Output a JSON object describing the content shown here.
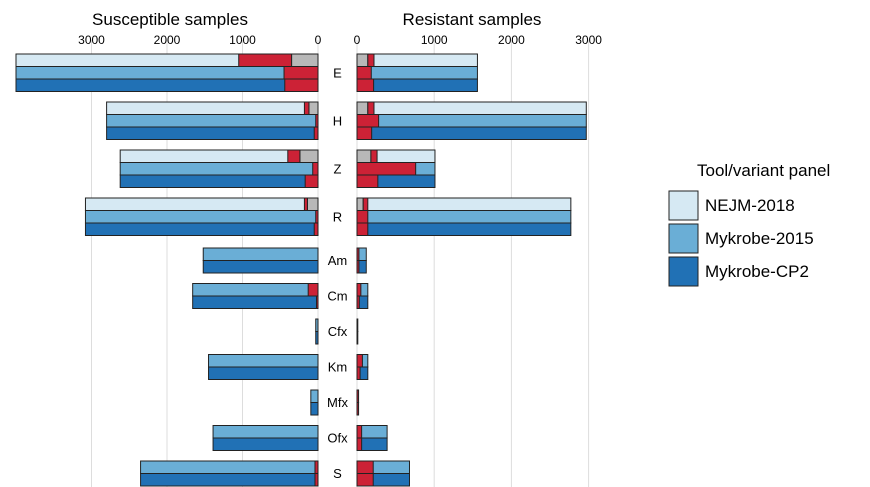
{
  "chart_data": {
    "type": "bar",
    "orientation": "horizontal",
    "layout": "back-to-back",
    "panels": [
      {
        "key": "susceptible",
        "title": "Susceptible samples",
        "direction": "left",
        "xlim": [
          0,
          4000
        ],
        "ticks": [
          0,
          1000,
          2000,
          3000
        ]
      },
      {
        "key": "resistant",
        "title": "Resistant samples",
        "direction": "right",
        "xlim": [
          0,
          3000
        ],
        "ticks": [
          0,
          1000,
          2000,
          3000
        ]
      }
    ],
    "legend": {
      "title": "Tool/variant panel",
      "placement": "right",
      "entries": [
        {
          "label": "NEJM-2018",
          "color": "#d6e9f3"
        },
        {
          "label": "Mykrobe-2015",
          "color": "#6aaed6"
        },
        {
          "label": "Mykrobe-CP2",
          "color": "#2171b5"
        }
      ]
    },
    "segment_colors": {
      "mismatch": "#cc2236",
      "missing": "#b8b8b8"
    },
    "tools": [
      "NEJM-2018",
      "Mykrobe-2015",
      "Mykrobe-CP2"
    ],
    "drugs": [
      {
        "name": "E",
        "susceptible": [
          {
            "total": 4000,
            "mismatch": 700,
            "missing": 350
          },
          {
            "total": 4000,
            "mismatch": 450,
            "missing": 0
          },
          {
            "total": 4000,
            "mismatch": 440,
            "missing": 0
          }
        ],
        "resistant": [
          {
            "total": 1560,
            "mismatch": 80,
            "missing": 140
          },
          {
            "total": 1560,
            "mismatch": 185,
            "missing": 0
          },
          {
            "total": 1560,
            "mismatch": 215,
            "missing": 0
          }
        ]
      },
      {
        "name": "H",
        "susceptible": [
          {
            "total": 2800,
            "mismatch": 60,
            "missing": 120
          },
          {
            "total": 2800,
            "mismatch": 30,
            "missing": 0
          },
          {
            "total": 2800,
            "mismatch": 50,
            "missing": 0
          }
        ],
        "resistant": [
          {
            "total": 2970,
            "mismatch": 80,
            "missing": 140
          },
          {
            "total": 2970,
            "mismatch": 280,
            "missing": 0
          },
          {
            "total": 2970,
            "mismatch": 190,
            "missing": 0
          }
        ]
      },
      {
        "name": "Z",
        "susceptible": [
          {
            "total": 2620,
            "mismatch": 160,
            "missing": 240
          },
          {
            "total": 2620,
            "mismatch": 70,
            "missing": 0
          },
          {
            "total": 2620,
            "mismatch": 170,
            "missing": 0
          }
        ],
        "resistant": [
          {
            "total": 1010,
            "mismatch": 80,
            "missing": 180
          },
          {
            "total": 1010,
            "mismatch": 760,
            "missing": 0
          },
          {
            "total": 1010,
            "mismatch": 270,
            "missing": 0
          }
        ]
      },
      {
        "name": "R",
        "susceptible": [
          {
            "total": 3080,
            "mismatch": 40,
            "missing": 140
          },
          {
            "total": 3080,
            "mismatch": 30,
            "missing": 0
          },
          {
            "total": 3080,
            "mismatch": 50,
            "missing": 0
          }
        ],
        "resistant": [
          {
            "total": 2770,
            "mismatch": 60,
            "missing": 80
          },
          {
            "total": 2770,
            "mismatch": 140,
            "missing": 0
          },
          {
            "total": 2770,
            "mismatch": 140,
            "missing": 0
          }
        ]
      },
      {
        "name": "Am",
        "susceptible": [
          null,
          {
            "total": 1520,
            "mismatch": 0,
            "missing": 0
          },
          {
            "total": 1520,
            "mismatch": 0,
            "missing": 0
          }
        ],
        "resistant": [
          null,
          {
            "total": 120,
            "mismatch": 25,
            "missing": 0
          },
          {
            "total": 120,
            "mismatch": 25,
            "missing": 0
          }
        ]
      },
      {
        "name": "Cm",
        "susceptible": [
          null,
          {
            "total": 1660,
            "mismatch": 130,
            "missing": 0
          },
          {
            "total": 1660,
            "mismatch": 20,
            "missing": 0
          }
        ],
        "resistant": [
          null,
          {
            "total": 140,
            "mismatch": 50,
            "missing": 0
          },
          {
            "total": 140,
            "mismatch": 30,
            "missing": 0
          }
        ]
      },
      {
        "name": "Cfx",
        "susceptible": [
          null,
          {
            "total": 30,
            "mismatch": 0,
            "missing": 0
          },
          {
            "total": 30,
            "mismatch": 0,
            "missing": 0
          }
        ],
        "resistant": [
          null,
          {
            "total": 8,
            "mismatch": 0,
            "missing": 0
          },
          {
            "total": 8,
            "mismatch": 0,
            "missing": 0
          }
        ]
      },
      {
        "name": "Km",
        "susceptible": [
          null,
          {
            "total": 1450,
            "mismatch": 0,
            "missing": 0
          },
          {
            "total": 1450,
            "mismatch": 0,
            "missing": 0
          }
        ],
        "resistant": [
          null,
          {
            "total": 140,
            "mismatch": 70,
            "missing": 0
          },
          {
            "total": 140,
            "mismatch": 40,
            "missing": 0
          }
        ]
      },
      {
        "name": "Mfx",
        "susceptible": [
          null,
          {
            "total": 95,
            "mismatch": 0,
            "missing": 0
          },
          {
            "total": 95,
            "mismatch": 0,
            "missing": 0
          }
        ],
        "resistant": [
          null,
          {
            "total": 20,
            "mismatch": 20,
            "missing": 0
          },
          {
            "total": 20,
            "mismatch": 20,
            "missing": 0
          }
        ]
      },
      {
        "name": "Ofx",
        "susceptible": [
          null,
          {
            "total": 1390,
            "mismatch": 0,
            "missing": 0
          },
          {
            "total": 1390,
            "mismatch": 0,
            "missing": 0
          }
        ],
        "resistant": [
          null,
          {
            "total": 390,
            "mismatch": 60,
            "missing": 0
          },
          {
            "total": 390,
            "mismatch": 60,
            "missing": 0
          }
        ]
      },
      {
        "name": "S",
        "susceptible": [
          null,
          {
            "total": 2350,
            "mismatch": 40,
            "missing": 0
          },
          {
            "total": 2350,
            "mismatch": 40,
            "missing": 0
          }
        ],
        "resistant": [
          null,
          {
            "total": 680,
            "mismatch": 210,
            "missing": 0
          },
          {
            "total": 680,
            "mismatch": 210,
            "missing": 0
          }
        ]
      }
    ]
  }
}
